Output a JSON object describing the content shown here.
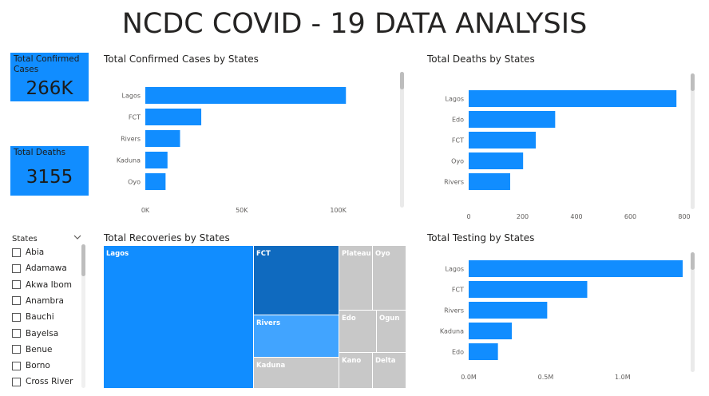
{
  "page": {
    "title": "NCDC COVID - 19 DATA ANALYSIS"
  },
  "cards": {
    "confirmed": {
      "label": "Total Confirmed Cases",
      "value": "266K"
    },
    "deaths": {
      "label": "Total Deaths",
      "value": "3155"
    }
  },
  "colors": {
    "bar": "#118DFF",
    "tick": "#605E5C",
    "treemap_gray": "#C8C8C8"
  },
  "slicer": {
    "title": "States",
    "items": [
      "Abia",
      "Adamawa",
      "Akwa Ibom",
      "Anambra",
      "Bauchi",
      "Bayelsa",
      "Benue",
      "Borno",
      "Cross River"
    ]
  },
  "chart_data": [
    {
      "id": "confirmed",
      "type": "bar",
      "orientation": "horizontal",
      "title": "Total Confirmed Cases by States",
      "categories": [
        "Lagos",
        "FCT",
        "Rivers",
        "Kaduna",
        "Oyo"
      ],
      "values": [
        104000,
        29000,
        18000,
        11500,
        10500
      ],
      "xlim": [
        0,
        125000
      ],
      "xticks": [
        0,
        50000,
        100000
      ],
      "xtick_labels": [
        "0K",
        "50K",
        "100K"
      ],
      "grid": false
    },
    {
      "id": "deaths",
      "type": "bar",
      "orientation": "horizontal",
      "title": "Total Deaths by States",
      "categories": [
        "Lagos",
        "Edo",
        "FCT",
        "Oyo",
        "Rivers"
      ],
      "values": [
        771,
        321,
        249,
        202,
        154
      ],
      "xlim": [
        0,
        800
      ],
      "xticks": [
        0,
        200,
        400,
        600,
        800
      ],
      "xtick_labels": [
        "0",
        "200",
        "400",
        "600",
        "800"
      ],
      "grid": false
    },
    {
      "id": "recoveries",
      "type": "treemap",
      "title": "Total Recoveries by States",
      "categories": [
        "Lagos",
        "FCT",
        "Rivers",
        "Kaduna",
        "Plateau",
        "Oyo",
        "Edo",
        "Ogun",
        "Kano",
        "Delta"
      ]
    },
    {
      "id": "testing",
      "type": "bar",
      "orientation": "horizontal",
      "title": "Total Testing by States",
      "categories": [
        "Lagos",
        "FCT",
        "Rivers",
        "Kaduna",
        "Edo"
      ],
      "values": [
        1390000,
        770000,
        510000,
        280000,
        190000
      ],
      "xlim": [
        0,
        1400000
      ],
      "xticks": [
        0,
        500000,
        1000000
      ],
      "xtick_labels": [
        "0.0M",
        "0.5M",
        "1.0M"
      ],
      "grid": false
    }
  ]
}
